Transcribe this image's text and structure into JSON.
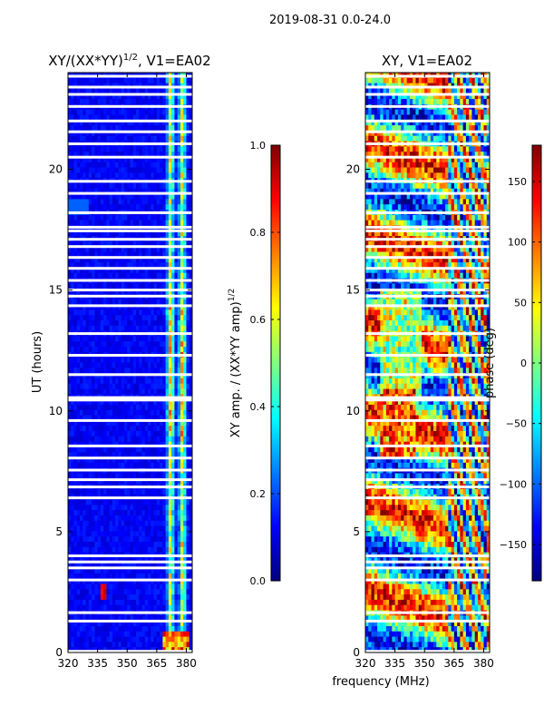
{
  "suptitle": "2019-08-31 0.0-24.0",
  "colors": {
    "jet": [
      "#00007f",
      "#0000ff",
      "#007fff",
      "#00ffff",
      "#7fff7f",
      "#ffff00",
      "#ff7f00",
      "#ff0000",
      "#7f0000"
    ],
    "background": "#00008f",
    "gap": "#ffffff"
  },
  "chart_data": [
    {
      "type": "heatmap",
      "title_main": "XY/(XX*YY)",
      "title_exp": "1/2",
      "title_tail": ", V1=EA02",
      "xlabel": "",
      "ylabel": "UT (hours)",
      "xlim": [
        320,
        383
      ],
      "ylim": [
        0,
        24
      ],
      "xticks": [
        320,
        335,
        350,
        365,
        380
      ],
      "yticks": [
        0,
        5,
        10,
        15,
        20
      ],
      "value_range": [
        0.0,
        1.0
      ],
      "description_values": "mostly low amplitude (~0.1) with bright vertical bands near 372 and 378 MHz; hot spots near 338 MHz at 2.5 h and 372-380 MHz at 0.5 h"
    },
    {
      "type": "heatmap",
      "title": "XY, V1=EA02",
      "xlabel": "frequency (MHz)",
      "ylabel": "",
      "xlim": [
        320,
        383
      ],
      "ylim": [
        0,
        24
      ],
      "xticks": [
        320,
        335,
        350,
        365,
        380
      ],
      "yticks": [
        0,
        5,
        10,
        15,
        20
      ],
      "value_range": [
        -180,
        180
      ]
    }
  ],
  "colorbars": [
    {
      "label_main": "XY amp. / (XX*YY amp)",
      "label_exp": "1/2",
      "range": [
        0.0,
        1.0
      ],
      "ticks": [
        0.0,
        0.2,
        0.4,
        0.6,
        0.8,
        1.0
      ],
      "tick_labels": [
        "0.0",
        "0.2",
        "0.4",
        "0.6",
        "0.8",
        "1.0"
      ]
    },
    {
      "label": "phase (deg)",
      "range": [
        -180,
        180
      ],
      "ticks": [
        -150,
        -100,
        -50,
        0,
        50,
        100,
        150
      ],
      "tick_labels": [
        "−150",
        "−100",
        "−50",
        "0",
        "50",
        "100",
        "150"
      ]
    }
  ]
}
